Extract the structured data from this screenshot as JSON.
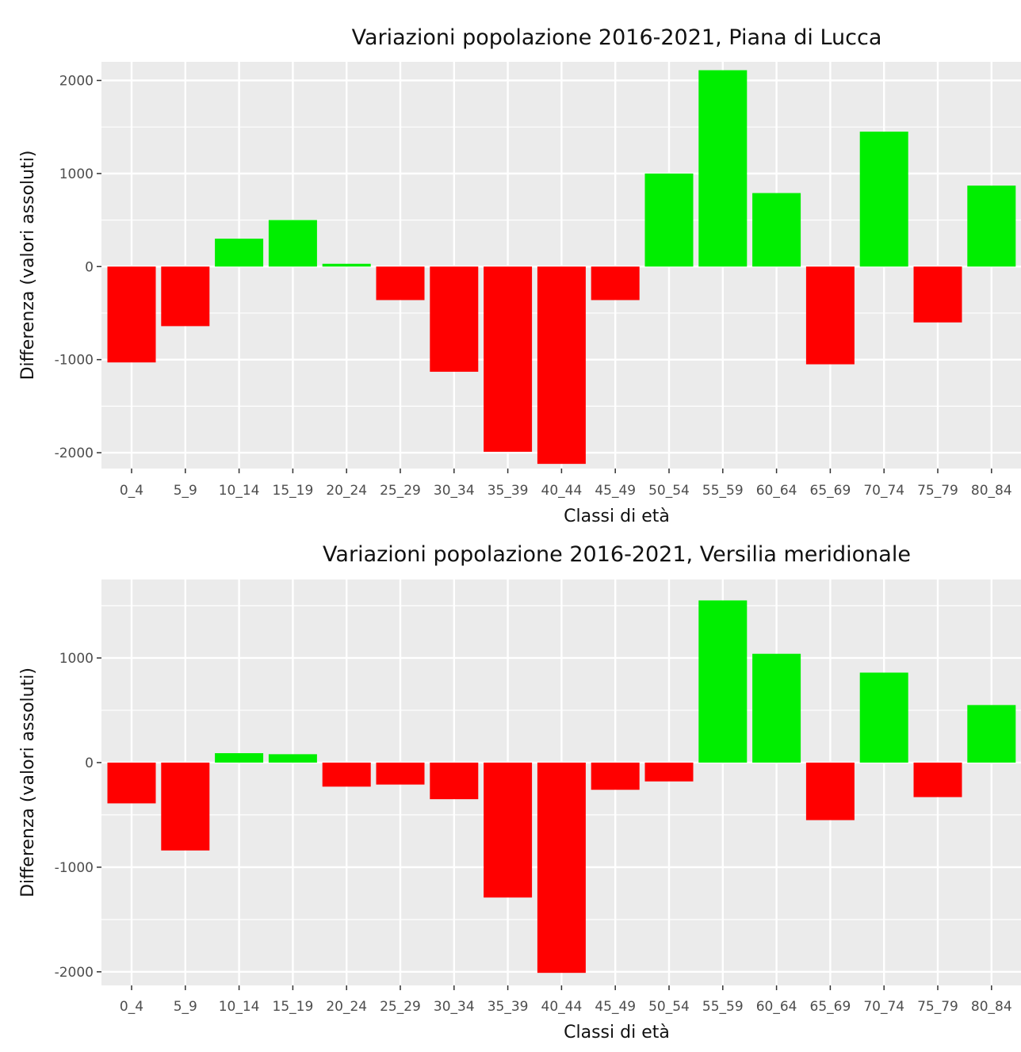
{
  "chart_data": [
    {
      "type": "bar",
      "title": "Variazioni popolazione 2016-2021, Piana di Lucca",
      "xlabel": "Classi di età",
      "ylabel": "Differenza (valori assoluti)",
      "categories": [
        "0_4",
        "5_9",
        "10_14",
        "15_19",
        "20_24",
        "25_29",
        "30_34",
        "35_39",
        "40_44",
        "45_49",
        "50_54",
        "55_59",
        "60_64",
        "65_69",
        "70_74",
        "75_79",
        "80_84"
      ],
      "values": [
        -1030,
        -640,
        300,
        500,
        30,
        -360,
        -1130,
        -1990,
        -2120,
        -360,
        1000,
        2110,
        790,
        -1050,
        1450,
        -600,
        870
      ],
      "ylim": [
        -2170,
        2200
      ],
      "yticks": [
        2000,
        1000,
        0,
        -1000,
        -2000
      ],
      "ytick_labels": [
        "2000",
        "1000",
        "0",
        "-1000",
        "-2000"
      ],
      "grid": true,
      "colors": {
        "positive": "#00ee00",
        "negative": "#ff0000",
        "panel": "#ebebeb",
        "grid": "#ffffff"
      }
    },
    {
      "type": "bar",
      "title": "Variazioni popolazione 2016-2021, Versilia meridionale",
      "xlabel": "Classi di età",
      "ylabel": "Differenza (valori assoluti)",
      "categories": [
        "0_4",
        "5_9",
        "10_14",
        "15_19",
        "20_24",
        "25_29",
        "30_34",
        "35_39",
        "40_44",
        "45_49",
        "50_54",
        "55_59",
        "60_64",
        "65_69",
        "70_74",
        "75_79",
        "80_84"
      ],
      "values": [
        -390,
        -840,
        90,
        80,
        -230,
        -210,
        -350,
        -1290,
        -2010,
        -260,
        -180,
        1550,
        1040,
        -550,
        860,
        -330,
        550
      ],
      "ylim": [
        -2130,
        1750
      ],
      "yticks": [
        1000,
        0,
        -1000,
        -2000
      ],
      "ytick_labels": [
        "1000",
        "0",
        "-1000",
        "-2000"
      ],
      "grid": true,
      "colors": {
        "positive": "#00ee00",
        "negative": "#ff0000",
        "panel": "#ebebeb",
        "grid": "#ffffff"
      }
    }
  ]
}
